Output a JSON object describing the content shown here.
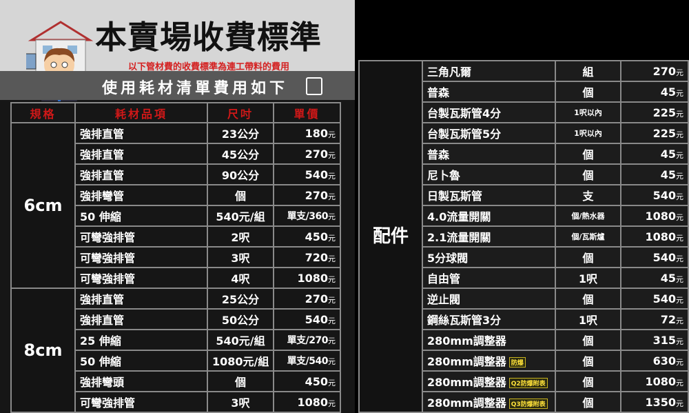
{
  "header": {
    "title": "本賣場收費標準",
    "subtitle": "以下管材費的收費標準為連工帶料的費用",
    "band": "使用耗材清單費用如下"
  },
  "left_table": {
    "columns": [
      "規格",
      "耗材品項",
      "尺吋",
      "單價"
    ],
    "groups": [
      {
        "spec": "6cm",
        "rows": [
          [
            "強排直管",
            "23公分",
            "180",
            "元"
          ],
          [
            "強排直管",
            "45公分",
            "270",
            "元"
          ],
          [
            "強排直管",
            "90公分",
            "540",
            "元"
          ],
          [
            "強排彎管",
            "個",
            "270",
            "元"
          ],
          [
            "50 伸縮",
            "540元/組",
            "單支/360",
            "元"
          ],
          [
            "可彎強排管",
            "2呎",
            "450",
            "元"
          ],
          [
            "可彎強排管",
            "3呎",
            "720",
            "元"
          ],
          [
            "可彎強排管",
            "4呎",
            "1080",
            "元"
          ]
        ]
      },
      {
        "spec": "8cm",
        "rows": [
          [
            "強排直管",
            "25公分",
            "270",
            "元"
          ],
          [
            "強排直管",
            "50公分",
            "540",
            "元"
          ],
          [
            "25 伸縮",
            "540元/組",
            "單支/270",
            "元"
          ],
          [
            "50 伸縮",
            "1080元/組",
            "單支/540",
            "元"
          ],
          [
            "強排彎頭",
            "個",
            "450",
            "元"
          ],
          [
            "可彎強排管",
            "3呎",
            "1080",
            "元"
          ]
        ]
      }
    ]
  },
  "right_table": {
    "group": "配件",
    "rows": [
      [
        "三角凡爾",
        "",
        "組",
        "270",
        "元"
      ],
      [
        "普森",
        "",
        "個",
        "45",
        "元"
      ],
      [
        "台製瓦斯管4分",
        "",
        "1呎以內",
        "225",
        "元"
      ],
      [
        "台製瓦斯管5分",
        "",
        "1呎以內",
        "225",
        "元"
      ],
      [
        "普森",
        "",
        "個",
        "45",
        "元"
      ],
      [
        "尼卜魯",
        "",
        "個",
        "45",
        "元"
      ],
      [
        "日製瓦斯管",
        "",
        "支",
        "540",
        "元"
      ],
      [
        "4.0流量開關",
        "",
        "個/熱水器",
        "1080",
        "元"
      ],
      [
        "2.1流量開關",
        "",
        "個/瓦斯爐",
        "1080",
        "元"
      ],
      [
        "5分球閥",
        "",
        "個",
        "540",
        "元"
      ],
      [
        "自由管",
        "",
        "1呎",
        "45",
        "元"
      ],
      [
        "逆止閥",
        "",
        "個",
        "540",
        "元"
      ],
      [
        "鋼絲瓦斯管3分",
        "",
        "1呎",
        "72",
        "元"
      ],
      [
        "280mm調整器",
        "",
        "個",
        "315",
        "元"
      ],
      [
        "280mm調整器",
        "防爆",
        "個",
        "630",
        "元"
      ],
      [
        "280mm調整器",
        "Q2防爆附表",
        "個",
        "1080",
        "元"
      ],
      [
        "280mm調整器",
        "Q3防爆附表",
        "個",
        "1350",
        "元"
      ]
    ]
  },
  "colors": {
    "header_red": "#d01818",
    "tag_yellow": "#ffe23a"
  }
}
